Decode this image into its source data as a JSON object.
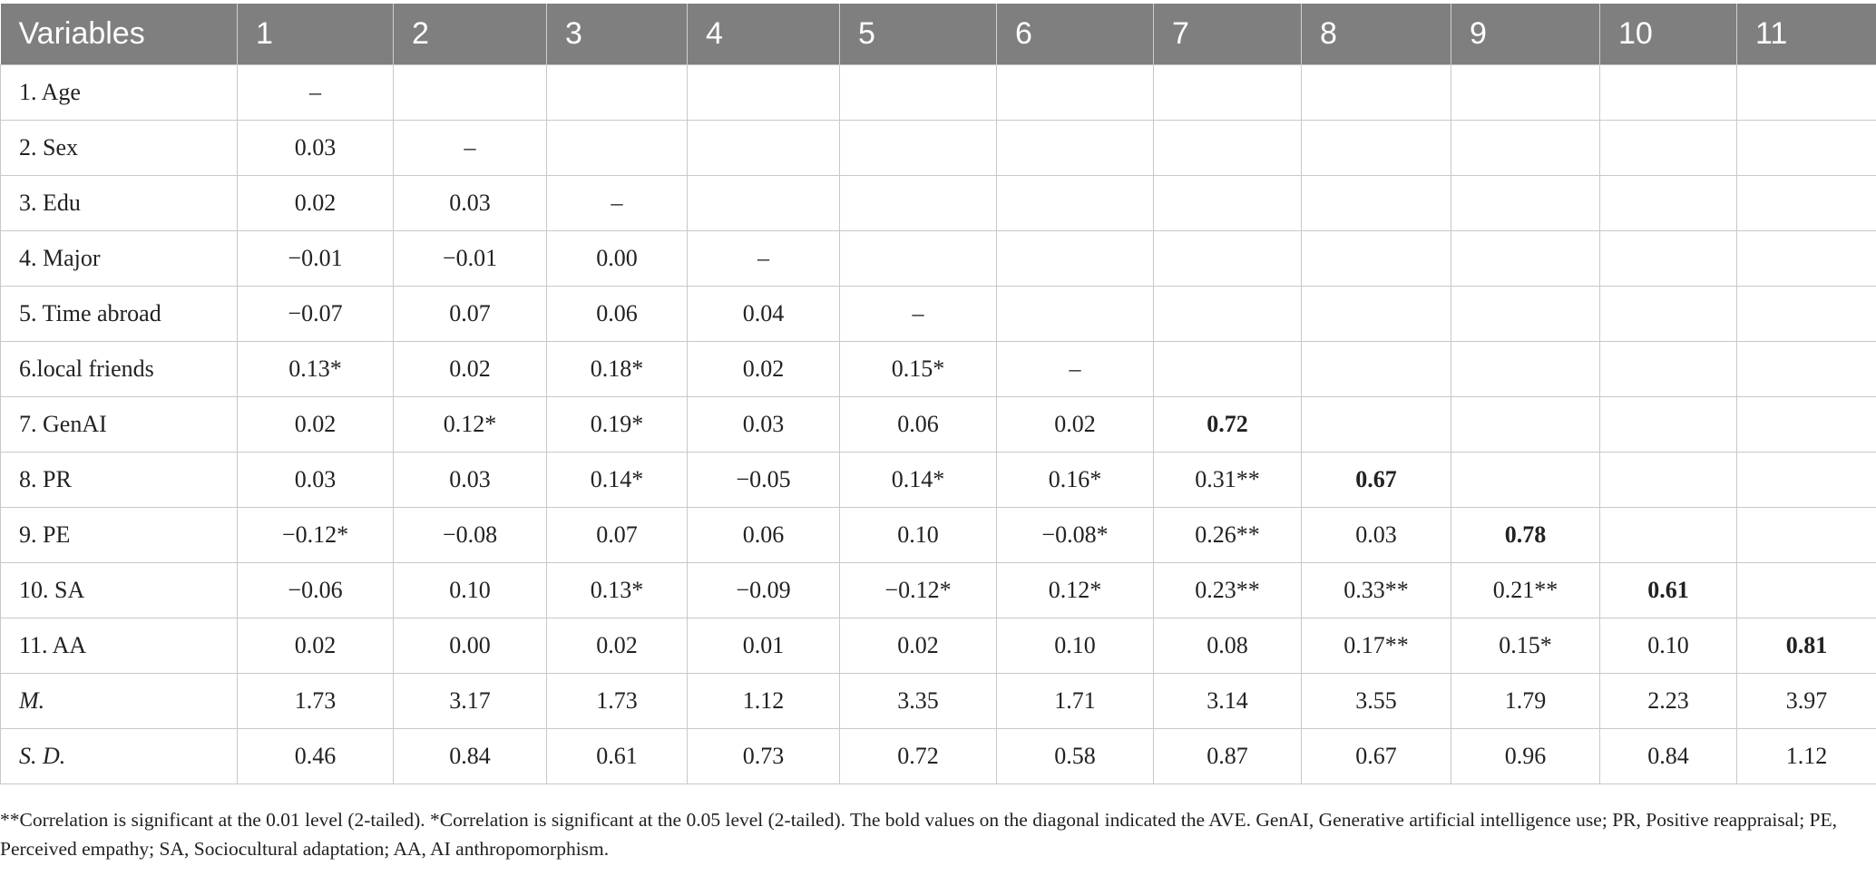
{
  "table": {
    "headers": [
      "Variables",
      "1",
      "2",
      "3",
      "4",
      "5",
      "6",
      "7",
      "8",
      "9",
      "10",
      "11"
    ],
    "rows": [
      {
        "label": "1. Age",
        "cells": [
          "–",
          "",
          "",
          "",
          "",
          "",
          "",
          "",
          "",
          "",
          ""
        ],
        "bold_index": null,
        "italic_label": false
      },
      {
        "label": "2. Sex",
        "cells": [
          "0.03",
          "–",
          "",
          "",
          "",
          "",
          "",
          "",
          "",
          "",
          ""
        ],
        "bold_index": null,
        "italic_label": false
      },
      {
        "label": "3. Edu",
        "cells": [
          "0.02",
          "0.03",
          "–",
          "",
          "",
          "",
          "",
          "",
          "",
          "",
          ""
        ],
        "bold_index": null,
        "italic_label": false
      },
      {
        "label": "4. Major",
        "cells": [
          "−0.01",
          "−0.01",
          "0.00",
          "–",
          "",
          "",
          "",
          "",
          "",
          "",
          ""
        ],
        "bold_index": null,
        "italic_label": false
      },
      {
        "label": "5. Time abroad",
        "cells": [
          "−0.07",
          "0.07",
          "0.06",
          "0.04",
          "–",
          "",
          "",
          "",
          "",
          "",
          ""
        ],
        "bold_index": null,
        "italic_label": false
      },
      {
        "label": "6.local friends",
        "cells": [
          "0.13*",
          "0.02",
          "0.18*",
          "0.02",
          "0.15*",
          "–",
          "",
          "",
          "",
          "",
          ""
        ],
        "bold_index": null,
        "italic_label": false
      },
      {
        "label": "7. GenAI",
        "cells": [
          "0.02",
          "0.12*",
          "0.19*",
          "0.03",
          "0.06",
          "0.02",
          "0.72",
          "",
          "",
          "",
          ""
        ],
        "bold_index": 6,
        "italic_label": false
      },
      {
        "label": "8. PR",
        "cells": [
          "0.03",
          "0.03",
          "0.14*",
          "−0.05",
          "0.14*",
          "0.16*",
          "0.31**",
          "0.67",
          "",
          "",
          ""
        ],
        "bold_index": 7,
        "italic_label": false
      },
      {
        "label": "9. PE",
        "cells": [
          "−0.12*",
          "−0.08",
          "0.07",
          "0.06",
          "0.10",
          "−0.08*",
          "0.26**",
          "0.03",
          "0.78",
          "",
          ""
        ],
        "bold_index": 8,
        "italic_label": false
      },
      {
        "label": "10. SA",
        "cells": [
          "−0.06",
          "0.10",
          "0.13*",
          "−0.09",
          "−0.12*",
          "0.12*",
          "0.23**",
          "0.33**",
          "0.21**",
          "0.61",
          ""
        ],
        "bold_index": 9,
        "italic_label": false
      },
      {
        "label": "11. AA",
        "cells": [
          "0.02",
          "0.00",
          "0.02",
          "0.01",
          "0.02",
          "0.10",
          "0.08",
          "0.17**",
          "0.15*",
          "0.10",
          "0.81"
        ],
        "bold_index": 10,
        "italic_label": false
      },
      {
        "label": "M.",
        "cells": [
          "1.73",
          "3.17",
          "1.73",
          "1.12",
          "3.35",
          "1.71",
          "3.14",
          "3.55",
          "1.79",
          "2.23",
          "3.97"
        ],
        "bold_index": null,
        "italic_label": true
      },
      {
        "label": "S. D.",
        "cells": [
          "0.46",
          "0.84",
          "0.61",
          "0.73",
          "0.72",
          "0.58",
          "0.87",
          "0.67",
          "0.96",
          "0.84",
          "1.12"
        ],
        "bold_index": null,
        "italic_label": true
      }
    ]
  },
  "footnote": {
    "text": "**Correlation is significant at the 0.01 level (2-tailed). *Correlation is significant at the 0.05 level (2-tailed). The bold values on the diagonal indicated the AVE. GenAI, Generative artificial intelligence use; PR, Positive reappraisal; PE, Perceived empathy; SA, Sociocultural adaptation; AA, AI anthropomorphism."
  },
  "colors": {
    "header_background": "#7f7f7f",
    "header_text": "#ffffff",
    "grid_line": "#c8c8c8",
    "body_text": "#222222"
  }
}
